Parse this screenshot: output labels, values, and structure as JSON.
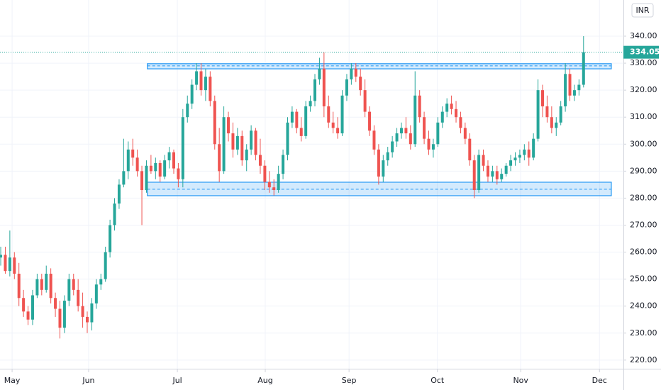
{
  "chart_data": {
    "type": "candlestick",
    "currency": "INR",
    "up_color": "#26a69a",
    "down_color": "#ef5350",
    "last_price": 334.05,
    "ylim": [
      216.8,
      353.4
    ],
    "yticks": [
      {
        "value": 220,
        "label": "220.00"
      },
      {
        "value": 230,
        "label": "230.00"
      },
      {
        "value": 240,
        "label": "240.00"
      },
      {
        "value": 250,
        "label": "250.00"
      },
      {
        "value": 260,
        "label": "260.00"
      },
      {
        "value": 270,
        "label": "270.00"
      },
      {
        "value": 280,
        "label": "280.00"
      },
      {
        "value": 290,
        "label": "290.00"
      },
      {
        "value": 300,
        "label": "300.00"
      },
      {
        "value": 310,
        "label": "310.00"
      },
      {
        "value": 320,
        "label": "320.00"
      },
      {
        "value": 330,
        "label": "330.00"
      },
      {
        "value": 340,
        "label": "340.00"
      }
    ],
    "xlim": [
      -0.16,
      136.6
    ],
    "xticks": [
      {
        "value": 2.5,
        "label": "May"
      },
      {
        "value": 19.3,
        "label": "Jun"
      },
      {
        "value": 38.8,
        "label": "Jul"
      },
      {
        "value": 58.1,
        "label": "Aug"
      },
      {
        "value": 76.5,
        "label": "Sep"
      },
      {
        "value": 95.9,
        "label": "Oct"
      },
      {
        "value": 114.2,
        "label": "Nov"
      },
      {
        "value": 131.5,
        "label": "Dec"
      }
    ],
    "grid": true,
    "zones": [
      {
        "top": 329.8,
        "bottom": 327.9,
        "line": 329.0,
        "x": [
          32.2,
          134.1
        ]
      },
      {
        "top": 285.9,
        "bottom": 280.9,
        "line": 283.3,
        "x": [
          32.2,
          134.1
        ]
      }
    ],
    "x": [
      0,
      1,
      2,
      3,
      4,
      5,
      6,
      7,
      8,
      9,
      10,
      11,
      12,
      13,
      14,
      15,
      16,
      17,
      18,
      19,
      20,
      21,
      22,
      23,
      24,
      25,
      26,
      27,
      28,
      29,
      30,
      31,
      32,
      33,
      34,
      35,
      36,
      37,
      38,
      39,
      40,
      41,
      42,
      43,
      44,
      45,
      46,
      47,
      48,
      49,
      50,
      51,
      52,
      53,
      54,
      55,
      56,
      57,
      58,
      59,
      60,
      61,
      62,
      63,
      64,
      65,
      66,
      67,
      68,
      69,
      70,
      71,
      72,
      73,
      74,
      75,
      76,
      77,
      78,
      79,
      80,
      81,
      82,
      83,
      84,
      85,
      86,
      87,
      88,
      89,
      90,
      91,
      92,
      93,
      94,
      95,
      96,
      97,
      98,
      99,
      100,
      101,
      102,
      103,
      104,
      105,
      106,
      107,
      108,
      109,
      110,
      111,
      112,
      113,
      114,
      115,
      116,
      117,
      118,
      119,
      120,
      121,
      122,
      123,
      124,
      125,
      126,
      127,
      128
    ],
    "candles": [
      [
        258,
        262,
        255,
        259
      ],
      [
        259,
        262,
        252,
        253
      ],
      [
        253,
        268,
        251,
        258
      ],
      [
        258,
        260,
        250,
        252
      ],
      [
        252,
        256,
        240,
        243
      ],
      [
        243,
        246,
        236,
        238
      ],
      [
        238,
        240,
        233,
        235
      ],
      [
        235,
        246,
        233,
        244
      ],
      [
        244,
        252,
        243,
        250
      ],
      [
        250,
        252,
        244,
        246
      ],
      [
        246,
        255,
        245,
        252
      ],
      [
        252,
        254,
        241,
        243
      ],
      [
        243,
        245,
        236,
        239
      ],
      [
        239,
        242,
        228,
        232
      ],
      [
        232,
        244,
        230,
        242
      ],
      [
        242,
        252,
        240,
        250
      ],
      [
        250,
        252,
        244,
        246
      ],
      [
        246,
        250,
        238,
        240
      ],
      [
        240,
        245,
        232,
        236
      ],
      [
        236,
        238,
        230,
        234
      ],
      [
        234,
        243,
        231,
        241
      ],
      [
        241,
        250,
        239,
        248
      ],
      [
        248,
        252,
        246,
        250
      ],
      [
        250,
        262,
        249,
        260
      ],
      [
        260,
        272,
        258,
        270
      ],
      [
        270,
        280,
        268,
        278
      ],
      [
        278,
        287,
        276,
        285
      ],
      [
        285,
        302,
        284,
        290
      ],
      [
        290,
        301,
        287,
        298
      ],
      [
        298,
        302,
        292,
        295
      ],
      [
        295,
        298,
        288,
        290
      ],
      [
        290,
        292,
        270,
        283
      ],
      [
        283,
        294,
        282,
        292
      ],
      [
        292,
        296,
        289,
        290
      ],
      [
        290,
        295,
        287,
        293
      ],
      [
        293,
        294,
        286,
        288
      ],
      [
        288,
        296,
        287,
        294
      ],
      [
        294,
        299,
        291,
        297
      ],
      [
        297,
        298,
        289,
        291
      ],
      [
        291,
        293,
        284,
        287
      ],
      [
        287,
        313,
        284,
        310
      ],
      [
        310,
        318,
        308,
        315
      ],
      [
        315,
        324,
        313,
        322
      ],
      [
        322,
        330,
        320,
        327
      ],
      [
        327,
        330,
        318,
        320
      ],
      [
        320,
        328,
        316,
        325
      ],
      [
        325,
        327,
        314,
        316
      ],
      [
        316,
        318,
        298,
        300
      ],
      [
        300,
        306,
        286,
        290
      ],
      [
        290,
        314,
        289,
        310
      ],
      [
        310,
        312,
        301,
        304
      ],
      [
        304,
        308,
        295,
        298
      ],
      [
        298,
        306,
        296,
        303
      ],
      [
        303,
        305,
        292,
        294
      ],
      [
        294,
        300,
        290,
        298
      ],
      [
        298,
        307,
        296,
        305
      ],
      [
        305,
        306,
        294,
        296
      ],
      [
        296,
        302,
        289,
        292
      ],
      [
        292,
        294,
        283,
        286
      ],
      [
        286,
        290,
        282,
        284
      ],
      [
        284,
        287,
        281,
        283
      ],
      [
        283,
        292,
        282,
        289
      ],
      [
        289,
        298,
        287,
        296
      ],
      [
        296,
        310,
        294,
        308
      ],
      [
        308,
        314,
        306,
        312
      ],
      [
        312,
        313,
        304,
        306
      ],
      [
        306,
        310,
        301,
        303
      ],
      [
        303,
        316,
        302,
        314
      ],
      [
        314,
        318,
        312,
        316
      ],
      [
        316,
        326,
        314,
        324
      ],
      [
        324,
        332,
        322,
        328
      ],
      [
        328,
        334,
        310,
        314
      ],
      [
        314,
        318,
        306,
        308
      ],
      [
        308,
        312,
        304,
        306
      ],
      [
        306,
        310,
        302,
        304
      ],
      [
        304,
        320,
        303,
        318
      ],
      [
        318,
        326,
        316,
        324
      ],
      [
        324,
        330,
        322,
        328
      ],
      [
        328,
        330,
        323,
        325
      ],
      [
        325,
        328,
        318,
        320
      ],
      [
        320,
        324,
        310,
        312
      ],
      [
        312,
        314,
        303,
        305
      ],
      [
        305,
        307,
        296,
        298
      ],
      [
        298,
        300,
        285,
        288
      ],
      [
        288,
        296,
        286,
        294
      ],
      [
        294,
        299,
        292,
        297
      ],
      [
        297,
        303,
        295,
        301
      ],
      [
        301,
        306,
        299,
        304
      ],
      [
        304,
        308,
        302,
        306
      ],
      [
        306,
        310,
        302,
        304
      ],
      [
        304,
        307,
        298,
        300
      ],
      [
        300,
        327,
        299,
        318
      ],
      [
        318,
        320,
        308,
        310
      ],
      [
        310,
        312,
        300,
        302
      ],
      [
        302,
        305,
        296,
        298
      ],
      [
        298,
        302,
        295,
        300
      ],
      [
        300,
        310,
        299,
        308
      ],
      [
        308,
        314,
        306,
        312
      ],
      [
        312,
        317,
        310,
        315
      ],
      [
        315,
        318,
        311,
        313
      ],
      [
        313,
        316,
        308,
        310
      ],
      [
        310,
        312,
        304,
        306
      ],
      [
        306,
        308,
        300,
        302
      ],
      [
        302,
        304,
        292,
        294
      ],
      [
        294,
        296,
        280,
        283
      ],
      [
        283,
        298,
        282,
        296
      ],
      [
        296,
        298,
        290,
        292
      ],
      [
        292,
        294,
        286,
        288
      ],
      [
        288,
        292,
        286,
        290
      ],
      [
        290,
        292,
        285,
        287
      ],
      [
        287,
        291,
        286,
        289
      ],
      [
        289,
        293,
        288,
        292
      ],
      [
        292,
        296,
        290,
        294
      ],
      [
        294,
        297,
        292,
        295
      ],
      [
        295,
        298,
        293,
        296
      ],
      [
        296,
        300,
        294,
        298
      ],
      [
        298,
        301,
        292,
        295
      ],
      [
        295,
        304,
        294,
        302
      ],
      [
        302,
        324,
        301,
        320
      ],
      [
        320,
        322,
        310,
        314
      ],
      [
        314,
        318,
        308,
        310
      ],
      [
        310,
        314,
        304,
        306
      ],
      [
        306,
        310,
        303,
        308
      ],
      [
        308,
        316,
        307,
        314
      ],
      [
        314,
        330,
        312,
        326
      ],
      [
        326,
        328,
        316,
        318
      ],
      [
        318,
        322,
        316,
        320
      ],
      [
        320,
        324,
        318,
        322
      ],
      [
        322,
        340,
        321,
        334.05
      ]
    ]
  }
}
